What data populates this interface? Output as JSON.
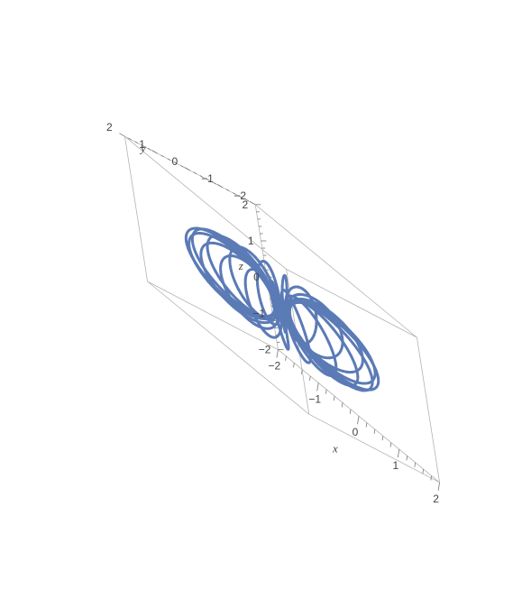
{
  "chart_data": {
    "type": "line",
    "subtype": "3d-parametric-curve",
    "title": "",
    "series_color": "#5b7bb6",
    "axes": {
      "x": {
        "label": "x",
        "range": [
          -2,
          2
        ],
        "ticks": [
          {
            "value": -2,
            "label": "−2"
          },
          {
            "value": -1,
            "label": "−1"
          },
          {
            "value": 0,
            "label": "0"
          },
          {
            "value": 1,
            "label": "1"
          },
          {
            "value": 2,
            "label": "2"
          }
        ]
      },
      "y": {
        "label": "y",
        "range": [
          -2,
          2
        ],
        "ticks": [
          {
            "value": -2,
            "label": "−2"
          },
          {
            "value": -1,
            "label": "−1"
          },
          {
            "value": 0,
            "label": "0"
          },
          {
            "value": 1,
            "label": "1"
          },
          {
            "value": 2,
            "label": "2"
          }
        ]
      },
      "z": {
        "label": "z",
        "range": [
          -2,
          2
        ],
        "ticks": [
          {
            "value": -2,
            "label": "−2"
          },
          {
            "value": -1,
            "label": "−1"
          },
          {
            "value": 0,
            "label": "0"
          },
          {
            "value": 1,
            "label": "1"
          },
          {
            "value": 2,
            "label": "2"
          }
        ]
      }
    },
    "curve": {
      "shape": "torus-knot",
      "major_radius": 1,
      "minor_radius": 0.85,
      "windings": 20,
      "parameter_range": [
        0,
        6.283185
      ]
    },
    "grid": false,
    "legend": "none"
  }
}
